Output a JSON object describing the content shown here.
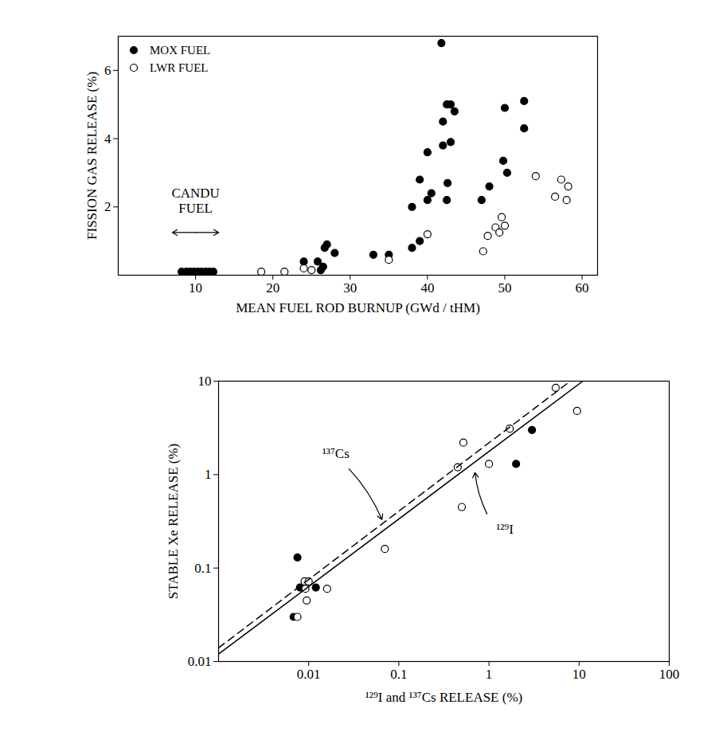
{
  "chart_data": [
    {
      "type": "scatter",
      "x_label": "MEAN FUEL ROD BURNUP (GWd / tHM)",
      "y_label": "FISSION GAS RELEASE (%)",
      "xlim": [
        0,
        62
      ],
      "xticks": [
        10,
        20,
        30,
        40,
        50,
        60
      ],
      "ylim": [
        0,
        7
      ],
      "yticks": [
        2,
        4,
        6
      ],
      "legend": "upper left",
      "series": [
        {
          "name": "MOX FUEL",
          "color": "#000000",
          "marker": "filled_circle",
          "x": [
            8.2,
            8.8,
            9.3,
            9.8,
            10.3,
            10.8,
            11.3,
            11.8,
            12.3,
            24,
            25.8,
            26.2,
            26.5,
            26.7,
            27,
            28,
            33,
            35,
            38,
            38,
            39,
            39,
            40,
            40,
            40.5,
            41.8,
            42,
            42,
            42.5,
            42.5,
            42.6,
            43,
            43,
            43.5,
            47,
            48,
            49.8,
            50,
            50.3,
            52.5,
            52.5
          ],
          "y": [
            0.1,
            0.1,
            0.1,
            0.1,
            0.1,
            0.1,
            0.1,
            0.1,
            0.1,
            0.4,
            0.4,
            0.15,
            0.25,
            0.8,
            0.9,
            0.65,
            0.6,
            0.6,
            0.8,
            2.0,
            2.8,
            1.0,
            2.2,
            3.6,
            2.4,
            6.8,
            3.8,
            4.5,
            5.0,
            2.2,
            2.7,
            5.0,
            3.9,
            4.8,
            2.2,
            2.6,
            3.35,
            4.9,
            3.0,
            5.1,
            4.3
          ]
        },
        {
          "name": "LWR FUEL",
          "color": "#000000",
          "marker": "open_circle",
          "x": [
            18.5,
            21.5,
            24,
            25,
            35,
            40,
            47.2,
            47.8,
            48.8,
            49.3,
            49.6,
            50,
            54,
            56.5,
            57.3,
            58,
            58.2
          ],
          "y": [
            0.1,
            0.1,
            0.2,
            0.15,
            0.45,
            1.2,
            0.7,
            1.15,
            1.4,
            1.25,
            1.7,
            1.45,
            2.9,
            2.3,
            2.8,
            2.2,
            2.6
          ]
        }
      ],
      "annotations": [
        {
          "text": "CANDU\nFUEL",
          "x": 10,
          "y": 2.2,
          "arrow": {
            "x1": 7,
            "y1": 1.25,
            "x2": 13,
            "y2": 1.25,
            "both_ends": true
          }
        }
      ]
    },
    {
      "type": "scatter",
      "log": true,
      "x_label": "¹²⁹I and ¹³⁷Cs RELEASE (%)",
      "y_label": "STABLE Xe RELEASE (%)",
      "xlim": [
        0.001,
        100
      ],
      "xticks": [
        0.01,
        0.1,
        1,
        10,
        100
      ],
      "ylim": [
        0.01,
        10
      ],
      "yticks": [
        0.01,
        0.1,
        1,
        10
      ],
      "series": [
        {
          "color": "#000000",
          "marker": "filled_circle",
          "x": [
            0.0068,
            0.0075,
            0.008,
            0.012,
            2,
            3
          ],
          "y": [
            0.03,
            0.13,
            0.062,
            0.062,
            1.3,
            3.0
          ]
        },
        {
          "color": "#000000",
          "marker": "open_circle",
          "x": [
            0.0075,
            0.009,
            0.0095,
            0.01,
            0.0092,
            0.016,
            0.07,
            0.45,
            0.5,
            0.52,
            1,
            1.7,
            5.5,
            9.5
          ],
          "y": [
            0.03,
            0.072,
            0.045,
            0.072,
            0.06,
            0.06,
            0.16,
            1.2,
            0.45,
            2.2,
            1.3,
            3.1,
            8.5,
            4.8
          ]
        },
        {
          "type": "line",
          "color": "#000000",
          "line_style": "dashed",
          "x": [
            0.001,
            8
          ],
          "y": [
            0.014,
            10
          ]
        },
        {
          "type": "line",
          "color": "#000000",
          "line_style": "solid",
          "x": [
            0.001,
            11
          ],
          "y": [
            0.012,
            10
          ]
        }
      ],
      "annotations": [
        {
          "text": "¹³⁷Cs",
          "x": 0.02,
          "y": 1.7,
          "arrow": {
            "x1": 0.028,
            "y1": 1.15,
            "x2": 0.065,
            "y2": 0.33
          }
        },
        {
          "text": "¹²⁹I",
          "x": 1.5,
          "y": 0.26,
          "arrow": {
            "x1": 0.95,
            "y1": 0.38,
            "x2": 0.7,
            "y2": 1.05
          }
        }
      ]
    }
  ]
}
